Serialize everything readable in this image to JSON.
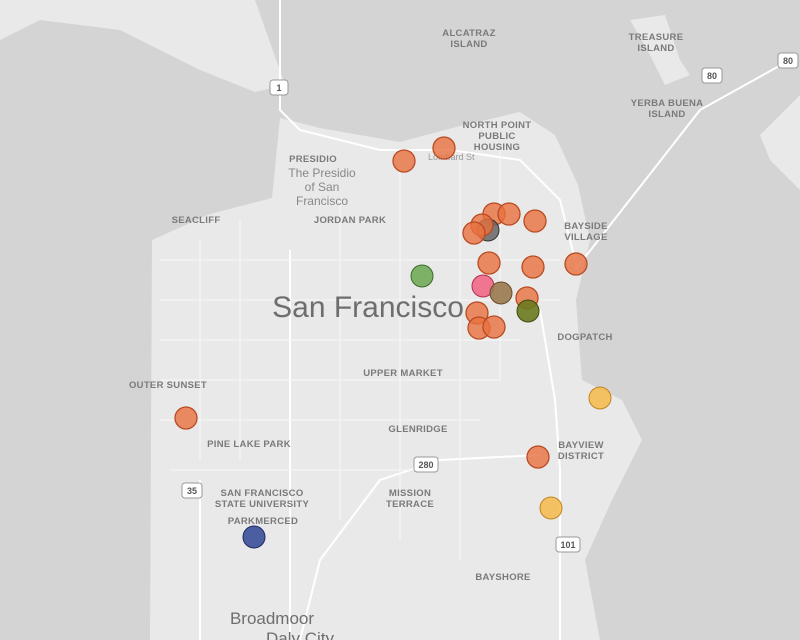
{
  "map": {
    "labels": {
      "alcatraz": [
        "ALCATRAZ",
        "ISLAND"
      ],
      "treasure": [
        "TREASURE",
        "ISLAND"
      ],
      "yerba": [
        "YERBA BUENA",
        "ISLAND"
      ],
      "north_point": [
        "NORTH POINT",
        "PUBLIC",
        "HOUSING"
      ],
      "presidio": "PRESIDIO",
      "presidio_park": [
        "The Presidio",
        "of San",
        "Francisco"
      ],
      "seacliff": "SEACLIFF",
      "jordan_park": "JORDAN PARK",
      "bayside": [
        "BAYSIDE",
        "VILLAGE"
      ],
      "city": "San Francisco",
      "dogpatch": "DOGPATCH",
      "outer_sunset": "OUTER SUNSET",
      "upper_market": "UPPER MARKET",
      "pine_lake": "PINE LAKE PARK",
      "glenridge": "GLENRIDGE",
      "bayview": [
        "BAYVIEW",
        "DISTRICT"
      ],
      "sfsu": [
        "SAN FRANCISCO",
        "STATE UNIVERSITY"
      ],
      "parkmerced": "PARKMERCED",
      "mission_terrace": [
        "MISSION",
        "TERRACE"
      ],
      "bayshore": "BAYSHORE",
      "broadmoor": "Broadmoor",
      "daly_city": "Daly City",
      "lombard": "Lombard St"
    },
    "shields": {
      "hwy1": "1",
      "i80a": "80",
      "i80b": "80",
      "hwy35": "35",
      "i280": "280",
      "us101": "101"
    }
  }
}
